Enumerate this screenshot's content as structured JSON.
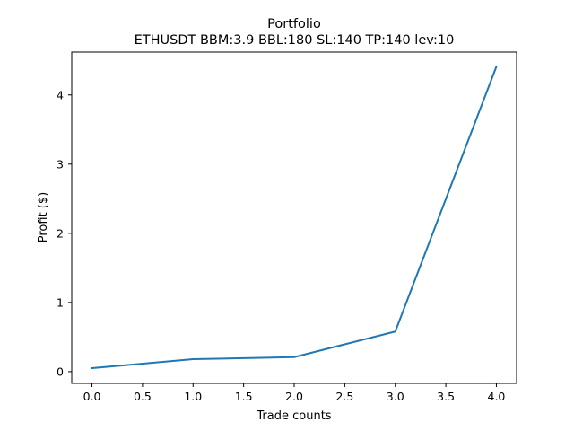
{
  "chart_data": {
    "type": "line",
    "title": "Portfolio",
    "subtitle": "ETHUSDT BBM:3.9 BBL:180 SL:140 TP:140 lev:10",
    "xlabel": "Trade counts",
    "ylabel": "Profit ($)",
    "xlim": [
      -0.2,
      4.2
    ],
    "ylim": [
      -0.17,
      4.62
    ],
    "x_ticks": [
      0.0,
      0.5,
      1.0,
      1.5,
      2.0,
      2.5,
      3.0,
      3.5,
      4.0
    ],
    "x_tick_labels": [
      "0.0",
      "0.5",
      "1.0",
      "1.5",
      "2.0",
      "2.5",
      "3.0",
      "3.5",
      "4.0"
    ],
    "y_ticks": [
      0,
      1,
      2,
      3,
      4
    ],
    "y_tick_labels": [
      "0",
      "1",
      "2",
      "3",
      "4"
    ],
    "grid": false,
    "series": [
      {
        "color": "#1f77b4",
        "x": [
          0,
          1,
          2,
          3,
          4
        ],
        "y": [
          0.05,
          0.18,
          0.21,
          0.58,
          4.41
        ]
      }
    ]
  }
}
